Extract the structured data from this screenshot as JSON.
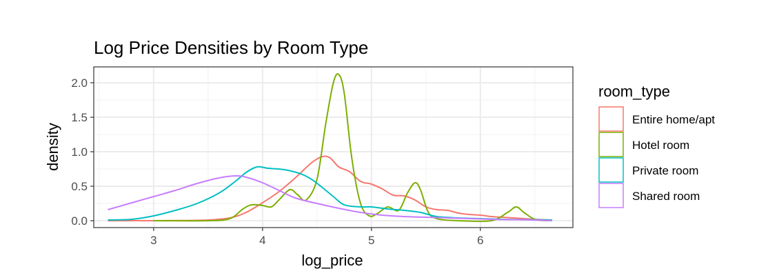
{
  "chart_data": {
    "type": "line",
    "title": "Log Price Densities by Room Type",
    "xlabel": "log_price",
    "ylabel": "density",
    "xlim": [
      2.45,
      6.85
    ],
    "ylim": [
      -0.1,
      2.23
    ],
    "x_ticks": [
      3,
      4,
      5,
      6
    ],
    "y_ticks": [
      0.0,
      0.5,
      1.0,
      1.5,
      2.0
    ],
    "x_tick_labels": [
      "3",
      "4",
      "5",
      "6"
    ],
    "y_tick_labels": [
      "0.0",
      "0.5",
      "1.0",
      "1.5",
      "2.0"
    ],
    "grid": true,
    "legend": {
      "title": "room_type",
      "position": "right"
    },
    "series": [
      {
        "name": "Entire home/apt",
        "color": "#F8766D",
        "points": [
          [
            2.58,
            0.0
          ],
          [
            3.0,
            0.0
          ],
          [
            3.3,
            0.003
          ],
          [
            3.5,
            0.01
          ],
          [
            3.7,
            0.04
          ],
          [
            3.85,
            0.12
          ],
          [
            4.0,
            0.26
          ],
          [
            4.15,
            0.42
          ],
          [
            4.3,
            0.62
          ],
          [
            4.45,
            0.84
          ],
          [
            4.55,
            0.93
          ],
          [
            4.62,
            0.91
          ],
          [
            4.7,
            0.78
          ],
          [
            4.8,
            0.71
          ],
          [
            4.9,
            0.57
          ],
          [
            5.0,
            0.53
          ],
          [
            5.1,
            0.46
          ],
          [
            5.2,
            0.37
          ],
          [
            5.3,
            0.36
          ],
          [
            5.4,
            0.3
          ],
          [
            5.5,
            0.2
          ],
          [
            5.6,
            0.16
          ],
          [
            5.7,
            0.15
          ],
          [
            5.8,
            0.11
          ],
          [
            5.9,
            0.09
          ],
          [
            6.0,
            0.08
          ],
          [
            6.1,
            0.06
          ],
          [
            6.2,
            0.05
          ],
          [
            6.3,
            0.04
          ],
          [
            6.4,
            0.03
          ],
          [
            6.5,
            0.02
          ],
          [
            6.66,
            0.01
          ]
        ]
      },
      {
        "name": "Hotel room",
        "color": "#7CAE00",
        "points": [
          [
            3.0,
            0.0
          ],
          [
            3.5,
            0.0
          ],
          [
            3.7,
            0.03
          ],
          [
            3.82,
            0.17
          ],
          [
            3.9,
            0.23
          ],
          [
            4.0,
            0.22
          ],
          [
            4.08,
            0.2
          ],
          [
            4.15,
            0.3
          ],
          [
            4.25,
            0.45
          ],
          [
            4.32,
            0.38
          ],
          [
            4.4,
            0.3
          ],
          [
            4.5,
            0.6
          ],
          [
            4.58,
            1.4
          ],
          [
            4.65,
            2.0
          ],
          [
            4.7,
            2.12
          ],
          [
            4.75,
            1.85
          ],
          [
            4.82,
            0.9
          ],
          [
            4.9,
            0.25
          ],
          [
            4.98,
            0.07
          ],
          [
            5.05,
            0.1
          ],
          [
            5.15,
            0.2
          ],
          [
            5.25,
            0.15
          ],
          [
            5.33,
            0.4
          ],
          [
            5.4,
            0.55
          ],
          [
            5.45,
            0.45
          ],
          [
            5.52,
            0.13
          ],
          [
            5.6,
            0.03
          ],
          [
            5.8,
            0.0
          ],
          [
            6.1,
            0.0
          ],
          [
            6.25,
            0.12
          ],
          [
            6.33,
            0.2
          ],
          [
            6.4,
            0.12
          ],
          [
            6.5,
            0.02
          ],
          [
            6.62,
            0.0
          ]
        ]
      },
      {
        "name": "Private room",
        "color": "#00BFC4",
        "points": [
          [
            2.58,
            0.01
          ],
          [
            2.8,
            0.02
          ],
          [
            3.0,
            0.07
          ],
          [
            3.2,
            0.15
          ],
          [
            3.4,
            0.25
          ],
          [
            3.6,
            0.4
          ],
          [
            3.75,
            0.57
          ],
          [
            3.85,
            0.7
          ],
          [
            3.95,
            0.78
          ],
          [
            4.05,
            0.76
          ],
          [
            4.2,
            0.74
          ],
          [
            4.35,
            0.68
          ],
          [
            4.45,
            0.6
          ],
          [
            4.55,
            0.48
          ],
          [
            4.65,
            0.35
          ],
          [
            4.75,
            0.23
          ],
          [
            4.9,
            0.2
          ],
          [
            5.0,
            0.2
          ],
          [
            5.15,
            0.17
          ],
          [
            5.3,
            0.15
          ],
          [
            5.45,
            0.12
          ],
          [
            5.6,
            0.06
          ],
          [
            5.8,
            0.04
          ],
          [
            6.0,
            0.03
          ],
          [
            6.2,
            0.02
          ],
          [
            6.4,
            0.015
          ],
          [
            6.66,
            0.01
          ]
        ]
      },
      {
        "name": "Shared room",
        "color": "#C77CFF",
        "points": [
          [
            2.58,
            0.16
          ],
          [
            2.8,
            0.26
          ],
          [
            3.0,
            0.35
          ],
          [
            3.2,
            0.44
          ],
          [
            3.4,
            0.54
          ],
          [
            3.6,
            0.62
          ],
          [
            3.75,
            0.65
          ],
          [
            3.85,
            0.63
          ],
          [
            4.0,
            0.55
          ],
          [
            4.15,
            0.44
          ],
          [
            4.3,
            0.33
          ],
          [
            4.5,
            0.25
          ],
          [
            4.7,
            0.18
          ],
          [
            4.9,
            0.12
          ],
          [
            5.1,
            0.08
          ],
          [
            5.3,
            0.06
          ],
          [
            5.5,
            0.05
          ],
          [
            5.7,
            0.04
          ],
          [
            5.9,
            0.03
          ],
          [
            6.1,
            0.02
          ],
          [
            6.3,
            0.015
          ],
          [
            6.5,
            0.01
          ],
          [
            6.66,
            0.0
          ]
        ]
      }
    ]
  }
}
